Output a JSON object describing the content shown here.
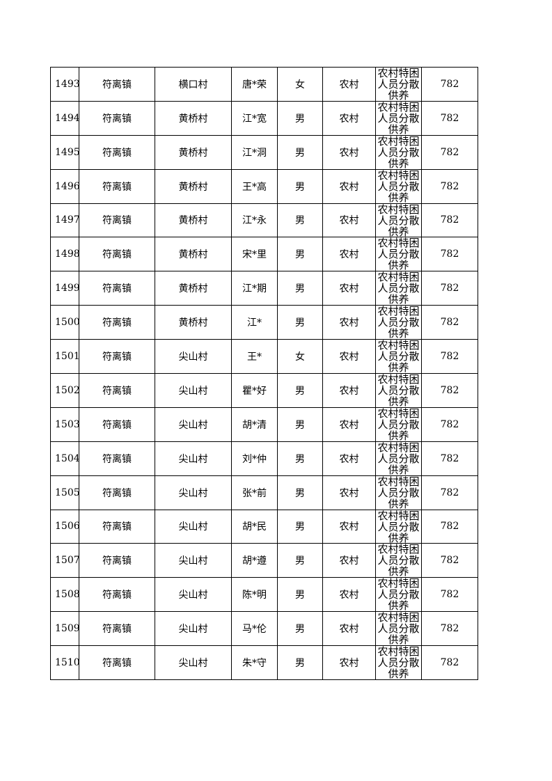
{
  "table": {
    "rows": [
      [
        "1493",
        "符离镇",
        "横口村",
        "唐*荣",
        "女",
        "农村",
        "农村特困人员分散供养",
        "782"
      ],
      [
        "1494",
        "符离镇",
        "黄桥村",
        "江*宽",
        "男",
        "农村",
        "农村特困人员分散供养",
        "782"
      ],
      [
        "1495",
        "符离镇",
        "黄桥村",
        "江*洞",
        "男",
        "农村",
        "农村特困人员分散供养",
        "782"
      ],
      [
        "1496",
        "符离镇",
        "黄桥村",
        "王*高",
        "男",
        "农村",
        "农村特困人员分散供养",
        "782"
      ],
      [
        "1497",
        "符离镇",
        "黄桥村",
        "江*永",
        "男",
        "农村",
        "农村特困人员分散供养",
        "782"
      ],
      [
        "1498",
        "符离镇",
        "黄桥村",
        "宋*里",
        "男",
        "农村",
        "农村特困人员分散供养",
        "782"
      ],
      [
        "1499",
        "符离镇",
        "黄桥村",
        "江*期",
        "男",
        "农村",
        "农村特困人员分散供养",
        "782"
      ],
      [
        "1500",
        "符离镇",
        "黄桥村",
        "江*",
        "男",
        "农村",
        "农村特困人员分散供养",
        "782"
      ],
      [
        "1501",
        "符离镇",
        "尖山村",
        "王*",
        "女",
        "农村",
        "农村特困人员分散供养",
        "782"
      ],
      [
        "1502",
        "符离镇",
        "尖山村",
        "瞿*好",
        "男",
        "农村",
        "农村特困人员分散供养",
        "782"
      ],
      [
        "1503",
        "符离镇",
        "尖山村",
        "胡*清",
        "男",
        "农村",
        "农村特困人员分散供养",
        "782"
      ],
      [
        "1504",
        "符离镇",
        "尖山村",
        "刘*仲",
        "男",
        "农村",
        "农村特困人员分散供养",
        "782"
      ],
      [
        "1505",
        "符离镇",
        "尖山村",
        "张*前",
        "男",
        "农村",
        "农村特困人员分散供养",
        "782"
      ],
      [
        "1506",
        "符离镇",
        "尖山村",
        "胡*民",
        "男",
        "农村",
        "农村特困人员分散供养",
        "782"
      ],
      [
        "1507",
        "符离镇",
        "尖山村",
        "胡*遵",
        "男",
        "农村",
        "农村特困人员分散供养",
        "782"
      ],
      [
        "1508",
        "符离镇",
        "尖山村",
        "陈*明",
        "男",
        "农村",
        "农村特困人员分散供养",
        "782"
      ],
      [
        "1509",
        "符离镇",
        "尖山村",
        "马*伦",
        "男",
        "农村",
        "农村特困人员分散供养",
        "782"
      ],
      [
        "1510",
        "符离镇",
        "尖山村",
        "朱*守",
        "男",
        "农村",
        "农村特困人员分散供养",
        "782"
      ]
    ]
  }
}
